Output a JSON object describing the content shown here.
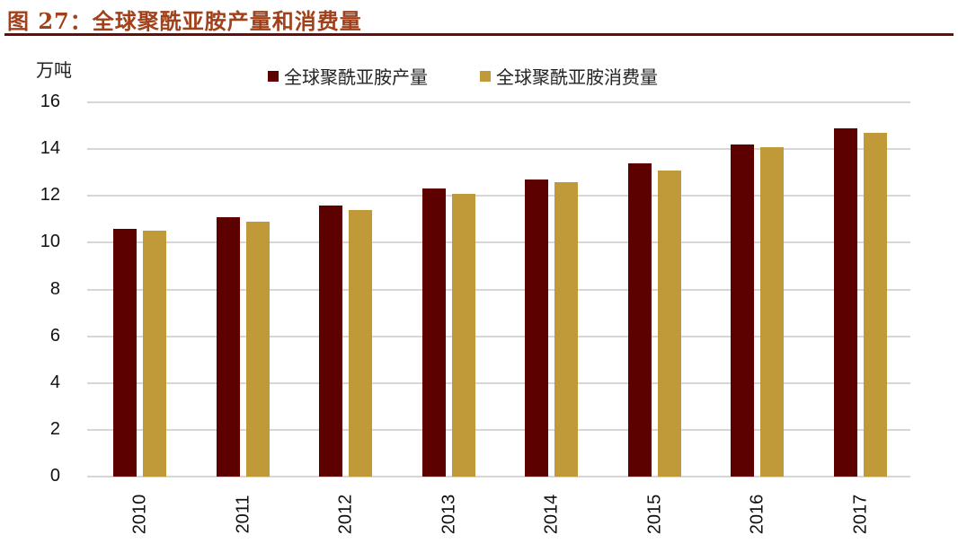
{
  "header": {
    "title": "图 27：全球聚酰亚胺产量和消费量"
  },
  "chart_data": {
    "type": "bar",
    "title": "图 27：全球聚酰亚胺产量和消费量",
    "ylabel": "万吨",
    "xlabel": "",
    "ylim": [
      0,
      16
    ],
    "yticks": [
      0,
      2,
      4,
      6,
      8,
      10,
      12,
      14,
      16
    ],
    "grid": true,
    "legend_position": "top",
    "categories": [
      "2010",
      "2011",
      "2012",
      "2013",
      "2014",
      "2015",
      "2016",
      "2017"
    ],
    "series": [
      {
        "name": "全球聚酰亚胺产量",
        "color": "#5c0000",
        "values": [
          10.6,
          11.1,
          11.6,
          12.3,
          12.7,
          13.4,
          14.2,
          14.9
        ]
      },
      {
        "name": "全球聚酰亚胺消费量",
        "color": "#c09a38",
        "values": [
          10.5,
          10.9,
          11.4,
          12.1,
          12.6,
          13.1,
          14.1,
          14.7
        ]
      }
    ]
  }
}
